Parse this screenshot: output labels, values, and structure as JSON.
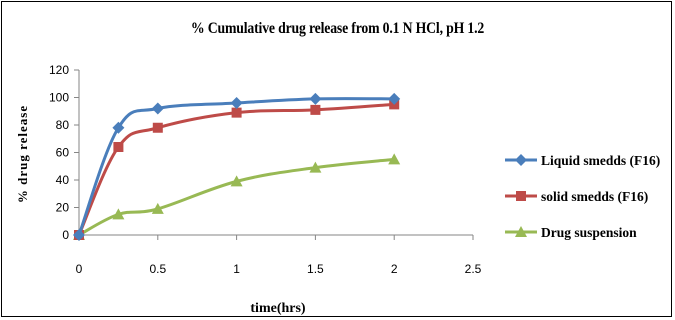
{
  "chart_data": {
    "type": "line",
    "title": "% Cumulative drug release  from 0.1 N HCl,  pH 1.2",
    "xlabel": "time(hrs)",
    "ylabel": "% drug release",
    "xlim": [
      0,
      2.5
    ],
    "ylim": [
      0,
      120
    ],
    "xticks": [
      "0",
      "0.5",
      "1",
      "1.5",
      "2",
      "2.5"
    ],
    "yticks": [
      "0",
      "20",
      "40",
      "60",
      "80",
      "100",
      "120"
    ],
    "grid": false,
    "legend_position": "right",
    "x": [
      0,
      0.25,
      0.5,
      1,
      1.5,
      2
    ],
    "series": [
      {
        "name": "Liquid smedds (F16)",
        "marker": "diamond",
        "color": "#4a7ebb",
        "values": [
          0,
          78,
          92,
          96,
          99,
          99
        ]
      },
      {
        "name": "solid smedds  (F16)",
        "marker": "square",
        "color": "#be4b48",
        "values": [
          0,
          64,
          78,
          89,
          91,
          95
        ]
      },
      {
        "name": "Drug suspension",
        "marker": "triangle",
        "color": "#98b954",
        "values": [
          0,
          15,
          19,
          39,
          49,
          55
        ]
      }
    ]
  }
}
